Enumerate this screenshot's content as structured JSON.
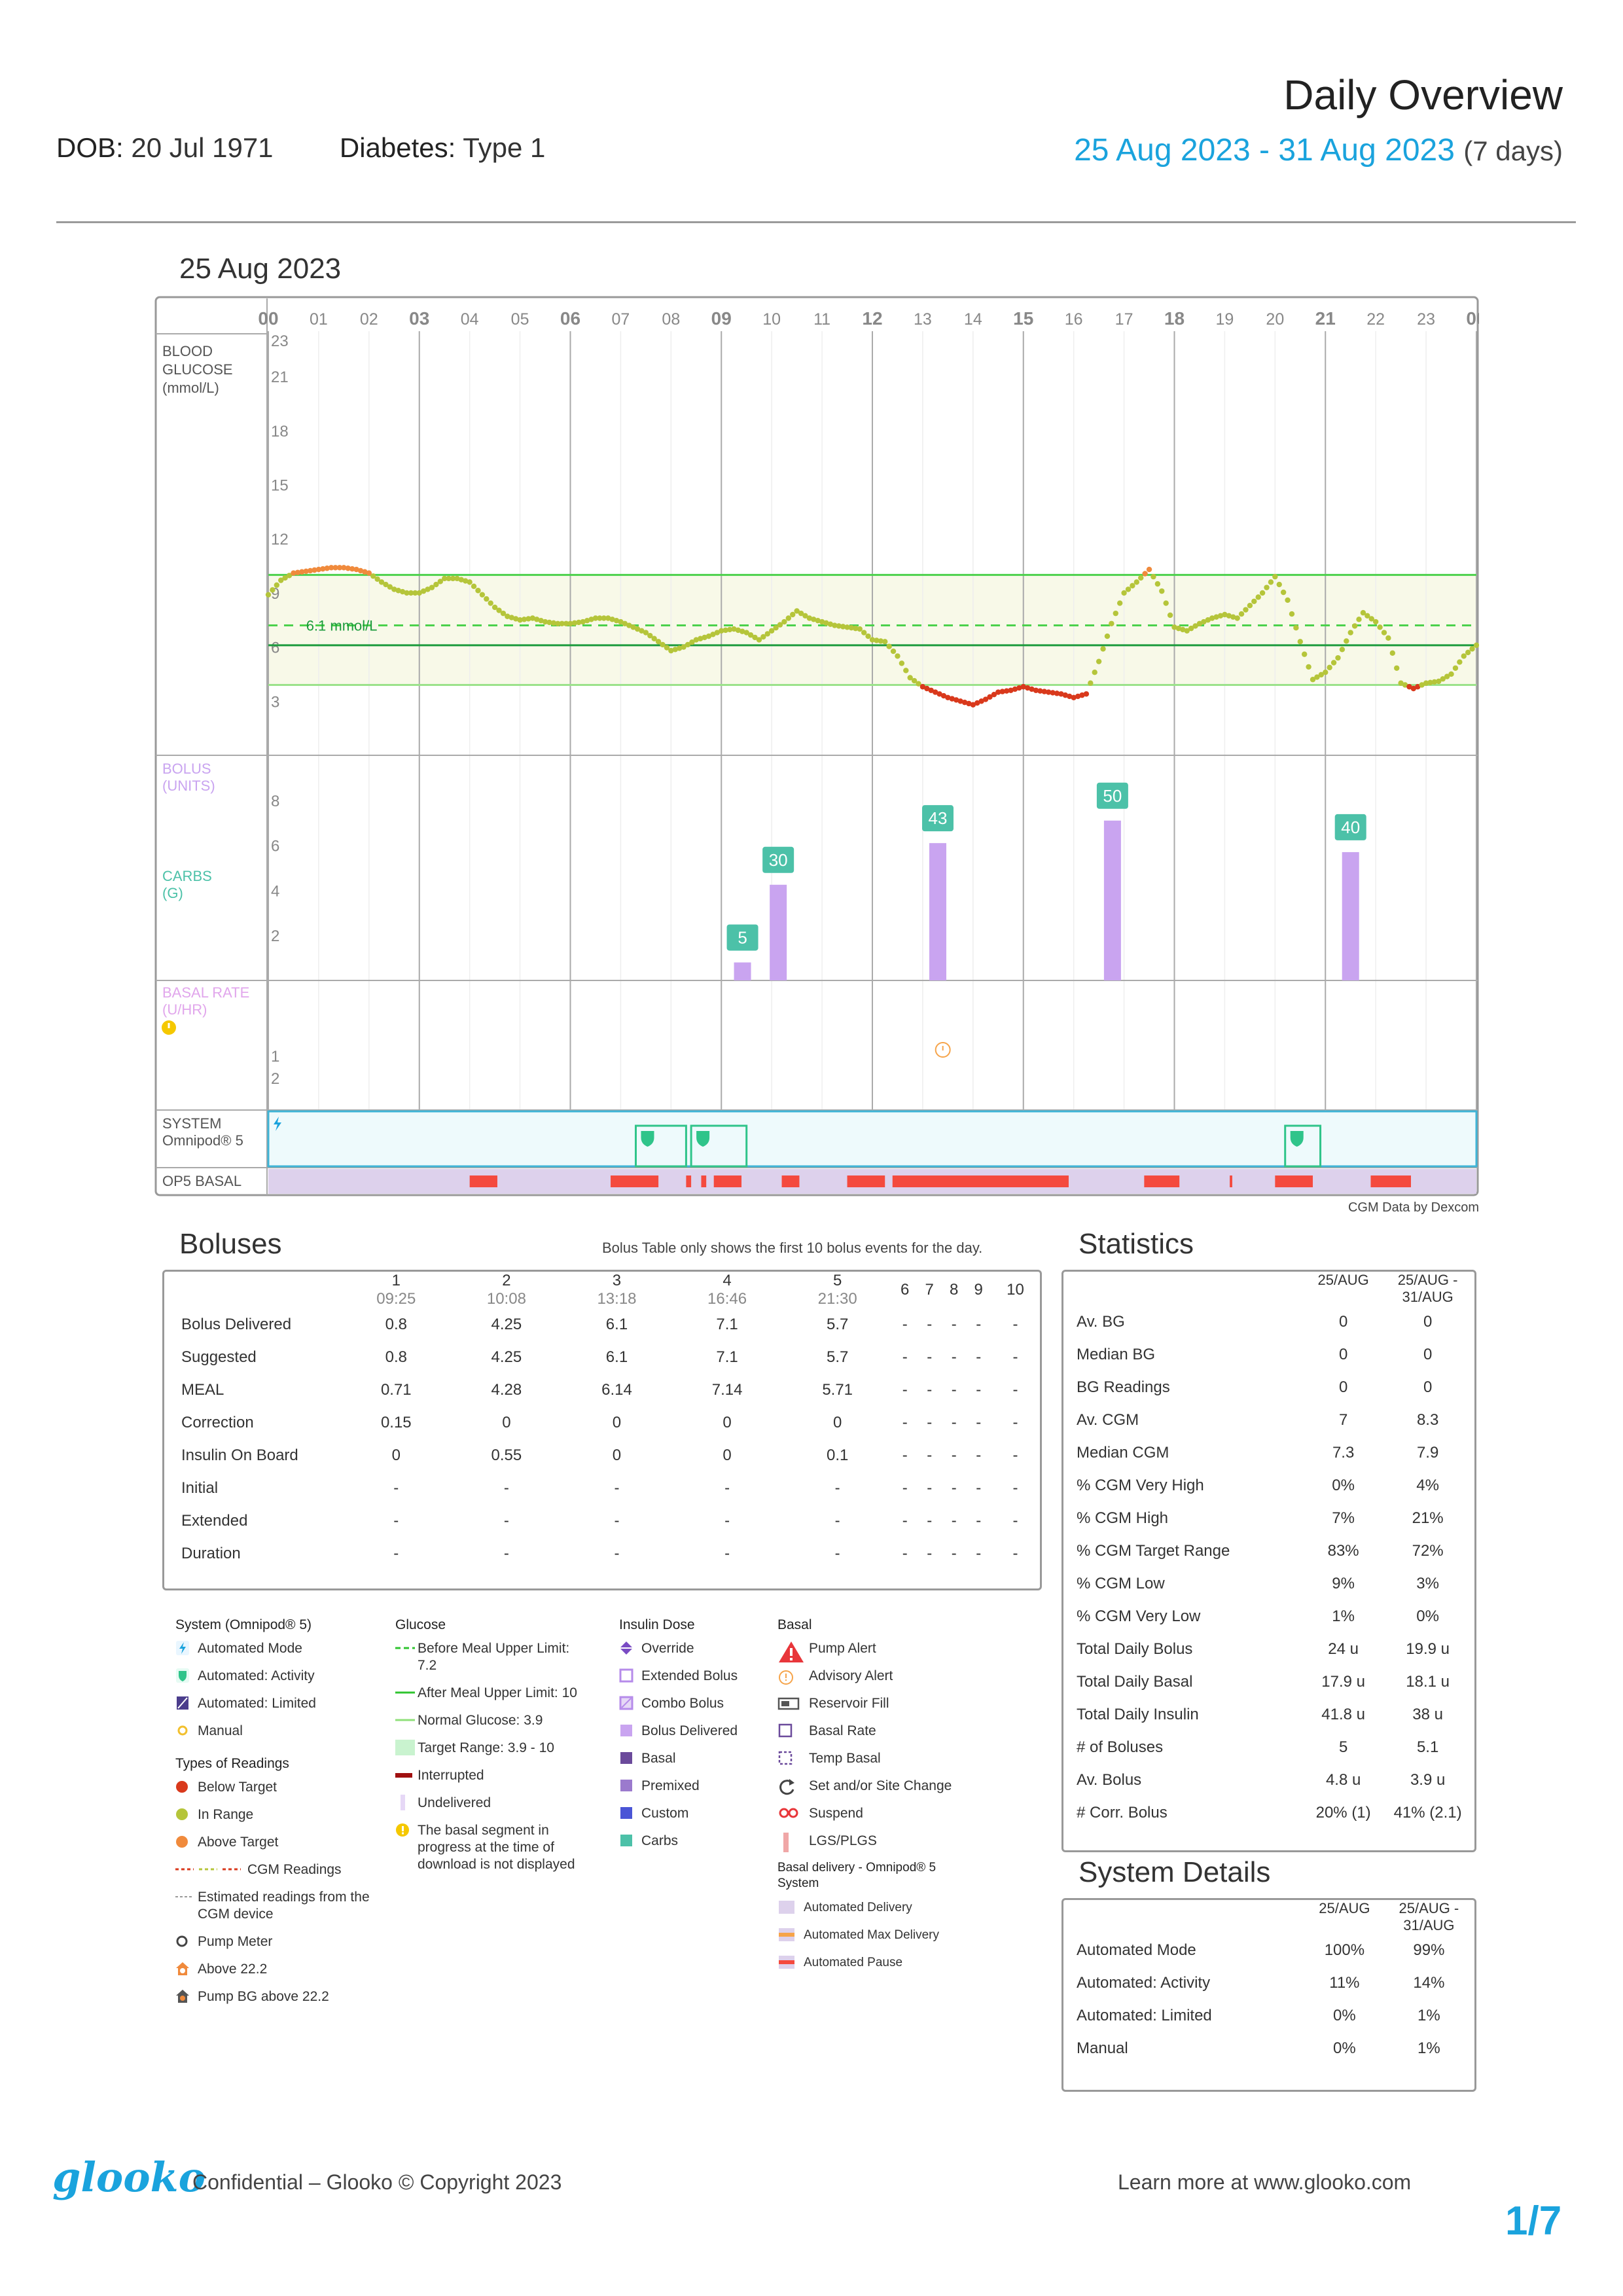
{
  "header": {
    "title": "Daily Overview",
    "dob_label": "DOB:",
    "dob": "20 Jul 1971",
    "diabetes_label": "Diabetes:",
    "diabetes": "Type 1",
    "range": "25 Aug 2023 - 31 Aug 2023",
    "days": "(7 days)"
  },
  "day": {
    "date": "25 Aug 2023"
  },
  "chart_data": {
    "type": "scatter",
    "x_axis": {
      "range": [
        0,
        24
      ],
      "tick_labels": [
        "00",
        "01",
        "02",
        "03",
        "04",
        "05",
        "06",
        "07",
        "08",
        "09",
        "10",
        "11",
        "12",
        "13",
        "14",
        "15",
        "16",
        "17",
        "18",
        "19",
        "20",
        "21",
        "22",
        "23",
        "00"
      ],
      "major_ticks": [
        "00",
        "03",
        "06",
        "09",
        "12",
        "15",
        "18",
        "21",
        "00"
      ]
    },
    "panels": {
      "glucose": {
        "label_lines": [
          "BLOOD",
          "GLUCOSE",
          "(mmol/L)"
        ],
        "ylim": [
          0,
          23
        ],
        "tick_labels": [
          "23",
          "21",
          "18",
          "15",
          "12",
          "9",
          "6",
          "3"
        ],
        "tick_values": [
          23,
          21,
          18,
          15,
          12,
          9,
          6,
          3
        ],
        "before_meal_upper": 7.2,
        "after_meal_upper": 10,
        "normal_glucose": 3.9,
        "target_range": [
          3.9,
          10
        ],
        "target_line_label": "6.1 mmol/L",
        "target_line_value": 6.1,
        "cgm_points": [
          [
            0.0,
            8.9
          ],
          [
            0.25,
            9.7
          ],
          [
            0.5,
            10.1
          ],
          [
            0.75,
            10.2
          ],
          [
            1.0,
            10.3
          ],
          [
            1.25,
            10.4
          ],
          [
            1.5,
            10.4
          ],
          [
            1.75,
            10.3
          ],
          [
            2.0,
            10.1
          ],
          [
            2.25,
            9.6
          ],
          [
            2.5,
            9.2
          ],
          [
            2.75,
            9.0
          ],
          [
            3.0,
            9.0
          ],
          [
            3.25,
            9.3
          ],
          [
            3.5,
            9.8
          ],
          [
            3.75,
            9.8
          ],
          [
            4.0,
            9.6
          ],
          [
            4.25,
            8.9
          ],
          [
            4.5,
            8.2
          ],
          [
            4.75,
            7.7
          ],
          [
            5.0,
            7.5
          ],
          [
            5.25,
            7.6
          ],
          [
            5.5,
            7.4
          ],
          [
            5.75,
            7.3
          ],
          [
            6.0,
            7.3
          ],
          [
            6.25,
            7.4
          ],
          [
            6.5,
            7.6
          ],
          [
            6.75,
            7.6
          ],
          [
            7.0,
            7.4
          ],
          [
            7.25,
            7.1
          ],
          [
            7.5,
            6.8
          ],
          [
            7.75,
            6.3
          ],
          [
            8.0,
            5.8
          ],
          [
            8.25,
            6.0
          ],
          [
            8.5,
            6.4
          ],
          [
            8.75,
            6.6
          ],
          [
            9.0,
            6.9
          ],
          [
            9.25,
            7.0
          ],
          [
            9.5,
            6.8
          ],
          [
            9.75,
            6.4
          ],
          [
            10.0,
            6.9
          ],
          [
            10.25,
            7.4
          ],
          [
            10.5,
            8.0
          ],
          [
            10.75,
            7.6
          ],
          [
            11.0,
            7.4
          ],
          [
            11.25,
            7.2
          ],
          [
            11.5,
            7.1
          ],
          [
            11.75,
            7.0
          ],
          [
            12.0,
            6.4
          ],
          [
            12.25,
            6.3
          ],
          [
            12.5,
            5.5
          ],
          [
            12.75,
            4.3
          ],
          [
            13.0,
            3.8
          ],
          [
            13.25,
            3.5
          ],
          [
            13.5,
            3.2
          ],
          [
            13.75,
            3.0
          ],
          [
            14.0,
            2.8
          ],
          [
            14.25,
            3.1
          ],
          [
            14.5,
            3.5
          ],
          [
            14.75,
            3.6
          ],
          [
            15.0,
            3.8
          ],
          [
            15.25,
            3.6
          ],
          [
            15.5,
            3.5
          ],
          [
            15.75,
            3.4
          ],
          [
            16.0,
            3.2
          ],
          [
            16.25,
            3.4
          ],
          [
            16.5,
            5.2
          ],
          [
            16.75,
            7.3
          ],
          [
            17.0,
            9.0
          ],
          [
            17.25,
            9.6
          ],
          [
            17.5,
            10.3
          ],
          [
            17.75,
            9.1
          ],
          [
            18.0,
            7.1
          ],
          [
            18.25,
            6.9
          ],
          [
            18.5,
            7.3
          ],
          [
            18.75,
            7.6
          ],
          [
            19.0,
            7.8
          ],
          [
            19.25,
            7.6
          ],
          [
            19.5,
            8.3
          ],
          [
            19.75,
            9.0
          ],
          [
            20.0,
            9.9
          ],
          [
            20.25,
            8.6
          ],
          [
            20.5,
            6.3
          ],
          [
            20.75,
            4.2
          ],
          [
            21.0,
            4.6
          ],
          [
            21.25,
            5.4
          ],
          [
            21.5,
            6.8
          ],
          [
            21.75,
            7.9
          ],
          [
            22.0,
            7.4
          ],
          [
            22.25,
            6.5
          ],
          [
            22.5,
            4.0
          ],
          [
            22.75,
            3.7
          ],
          [
            23.0,
            4.0
          ],
          [
            23.25,
            4.1
          ],
          [
            23.5,
            4.5
          ],
          [
            23.75,
            5.5
          ],
          [
            24.0,
            6.1
          ]
        ]
      },
      "bolus_carbs": {
        "bolus_label_lines": [
          "BOLUS",
          "(UNITS)"
        ],
        "carbs_label_lines": [
          "CARBS",
          "(G)"
        ],
        "ylim": [
          0,
          10
        ],
        "tick_labels": [
          "8",
          "6",
          "4",
          "2"
        ],
        "tick_values": [
          8,
          6,
          4,
          2
        ],
        "boluses": [
          {
            "time": 9.42,
            "units": 0.8,
            "carbs": "5"
          },
          {
            "time": 10.13,
            "units": 4.25,
            "carbs": "30"
          },
          {
            "time": 13.3,
            "units": 6.1,
            "carbs": "43"
          },
          {
            "time": 16.77,
            "units": 7.1,
            "carbs": "50"
          },
          {
            "time": 21.5,
            "units": 5.7,
            "carbs": "40"
          }
        ]
      },
      "basal": {
        "label_lines": [
          "BASAL RATE",
          "(U/HR)"
        ],
        "tick_labels": [
          "2",
          "1"
        ],
        "tick_values": [
          2,
          1
        ],
        "advisory_time": 13.4
      },
      "system": {
        "label_lines": [
          "SYSTEM",
          "Omnipod® 5"
        ],
        "activity_spans": [
          [
            7.3,
            8.3
          ],
          [
            8.4,
            9.5
          ],
          [
            20.2,
            20.9
          ]
        ]
      },
      "op5_basal": {
        "label": "OP5 BASAL",
        "pause_spans": [
          [
            4.0,
            4.55
          ],
          [
            6.8,
            7.75
          ],
          [
            8.3,
            8.4
          ],
          [
            8.6,
            8.7
          ],
          [
            8.85,
            9.4
          ],
          [
            10.2,
            10.55
          ],
          [
            11.5,
            12.25
          ],
          [
            12.4,
            15.9
          ],
          [
            17.4,
            18.1
          ],
          [
            19.1,
            19.15
          ],
          [
            20.0,
            20.75
          ],
          [
            21.9,
            22.7
          ]
        ]
      }
    }
  },
  "dexcom_note": "CGM Data by Dexcom",
  "boluses": {
    "title": "Boluses",
    "note": "Bolus Table only shows the first 10 bolus events for the day.",
    "columns": [
      {
        "n": "1",
        "time": "09:25"
      },
      {
        "n": "2",
        "time": "10:08"
      },
      {
        "n": "3",
        "time": "13:18"
      },
      {
        "n": "4",
        "time": "16:46"
      },
      {
        "n": "5",
        "time": "21:30"
      },
      {
        "n": "6",
        "time": ""
      },
      {
        "n": "7",
        "time": ""
      },
      {
        "n": "8",
        "time": ""
      },
      {
        "n": "9",
        "time": ""
      },
      {
        "n": "10",
        "time": ""
      }
    ],
    "rows": [
      {
        "label": "Bolus Delivered",
        "values": [
          "0.8",
          "4.25",
          "6.1",
          "7.1",
          "5.7",
          "-",
          "-",
          "-",
          "-",
          "-"
        ]
      },
      {
        "label": "Suggested",
        "values": [
          "0.8",
          "4.25",
          "6.1",
          "7.1",
          "5.7",
          "-",
          "-",
          "-",
          "-",
          "-"
        ]
      },
      {
        "label": "MEAL",
        "values": [
          "0.71",
          "4.28",
          "6.14",
          "7.14",
          "5.71",
          "-",
          "-",
          "-",
          "-",
          "-"
        ]
      },
      {
        "label": "Correction",
        "values": [
          "0.15",
          "0",
          "0",
          "0",
          "0",
          "-",
          "-",
          "-",
          "-",
          "-"
        ]
      },
      {
        "label": "Insulin On Board",
        "values": [
          "0",
          "0.55",
          "0",
          "0",
          "0.1",
          "-",
          "-",
          "-",
          "-",
          "-"
        ]
      },
      {
        "label": "Initial",
        "values": [
          "-",
          "-",
          "-",
          "-",
          "-",
          "-",
          "-",
          "-",
          "-",
          "-"
        ]
      },
      {
        "label": "Extended",
        "values": [
          "-",
          "-",
          "-",
          "-",
          "-",
          "-",
          "-",
          "-",
          "-",
          "-"
        ]
      },
      {
        "label": "Duration",
        "values": [
          "-",
          "-",
          "-",
          "-",
          "-",
          "-",
          "-",
          "-",
          "-",
          "-"
        ]
      }
    ]
  },
  "statistics": {
    "title": "Statistics",
    "col1": "25/AUG",
    "col2_lines": [
      "25/AUG -",
      "31/AUG"
    ],
    "rows": [
      {
        "label": "Av. BG",
        "a": "0",
        "b": "0"
      },
      {
        "label": "Median BG",
        "a": "0",
        "b": "0"
      },
      {
        "label": "BG Readings",
        "a": "0",
        "b": "0"
      },
      {
        "label": "Av. CGM",
        "a": "7",
        "b": "8.3"
      },
      {
        "label": "Median CGM",
        "a": "7.3",
        "b": "7.9"
      },
      {
        "label": "% CGM Very High",
        "a": "0%",
        "b": "4%"
      },
      {
        "label": "% CGM High",
        "a": "7%",
        "b": "21%"
      },
      {
        "label": "% CGM Target Range",
        "a": "83%",
        "b": "72%"
      },
      {
        "label": "% CGM Low",
        "a": "9%",
        "b": "3%"
      },
      {
        "label": "% CGM Very Low",
        "a": "1%",
        "b": "0%"
      },
      {
        "label": "Total Daily Bolus",
        "a": "24 u",
        "b": "19.9 u"
      },
      {
        "label": "Total Daily Basal",
        "a": "17.9 u",
        "b": "18.1 u"
      },
      {
        "label": "Total Daily Insulin",
        "a": "41.8 u",
        "b": "38 u"
      },
      {
        "label": "# of Boluses",
        "a": "5",
        "b": "5.1"
      },
      {
        "label": "Av. Bolus",
        "a": "4.8 u",
        "b": "3.9 u"
      },
      {
        "label": "# Corr. Bolus",
        "a": "20% (1)",
        "b": "41% (2.1)"
      }
    ]
  },
  "system_details": {
    "title": "System Details",
    "col1": "25/AUG",
    "col2_lines": [
      "25/AUG -",
      "31/AUG"
    ],
    "rows": [
      {
        "label": "Automated Mode",
        "a": "100%",
        "b": "99%"
      },
      {
        "label": "Automated: Activity",
        "a": "11%",
        "b": "14%"
      },
      {
        "label": "Automated: Limited",
        "a": "0%",
        "b": "1%"
      },
      {
        "label": "Manual",
        "a": "0%",
        "b": "1%"
      }
    ]
  },
  "legend": {
    "system": {
      "title": "System (Omnipod® 5)",
      "items": [
        "Automated Mode",
        "Automated: Activity",
        "Automated: Limited",
        "Manual"
      ]
    },
    "readings": {
      "title": "Types of Readings",
      "items": [
        "Below Target",
        "In Range",
        "Above Target",
        "CGM Readings",
        "Estimated readings from the CGM device",
        "Pump Meter",
        "Above 22.2",
        "Pump BG above 22.2"
      ]
    },
    "glucose": {
      "title": "Glucose",
      "items": [
        "Before Meal Upper Limit:",
        "After Meal Upper Limit:",
        "Normal Glucose:",
        "Target Range:",
        "Interrupted",
        "Undelivered",
        "The basal segment in progress at the time of download is not displayed"
      ],
      "values": [
        "7.2",
        "10",
        "3.9",
        "3.9 - 10"
      ]
    },
    "insulin": {
      "title": "Insulin Dose",
      "items": [
        "Override",
        "Extended Bolus",
        "Combo Bolus",
        "Bolus Delivered",
        "Basal",
        "Premixed",
        "Custom",
        "Carbs"
      ]
    },
    "basal": {
      "title": "Basal",
      "items": [
        "Pump Alert",
        "Advisory Alert",
        "Reservoir Fill",
        "Basal Rate",
        "Temp Basal",
        "Set and/or Site Change",
        "Suspend",
        "LGS/PLGS"
      ],
      "delivery_title": "Basal delivery - Omnipod® 5 System",
      "delivery_items": [
        "Automated Delivery",
        "Automated Max Delivery",
        "Automated Pause"
      ]
    }
  },
  "colors": {
    "accent": "#1aa3dd",
    "in_range": "#b5c53a",
    "above": "#f08a3c",
    "below": "#d9391c",
    "bolus": "#c9a4f0",
    "carbs": "#4cc1a8",
    "pause": "#f44a3e",
    "basal_bg": "#ddd1ec"
  },
  "footer": {
    "logo": "glooko",
    "confidential": "Confidential – Glooko © Copyright 2023",
    "learn": "Learn more at www.glooko.com",
    "page": "1/7"
  }
}
